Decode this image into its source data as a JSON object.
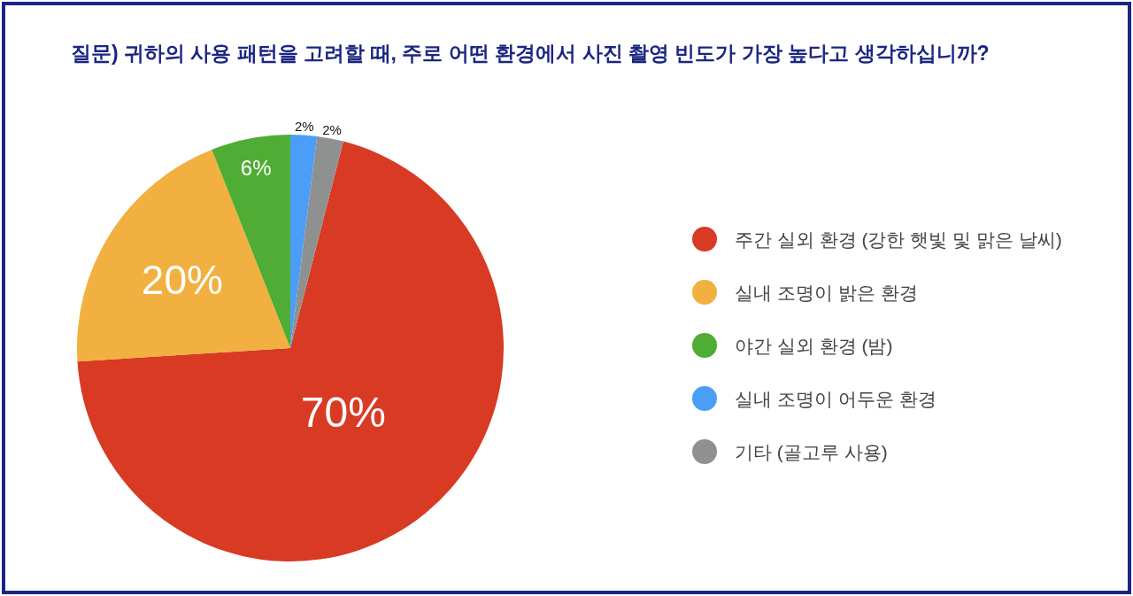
{
  "chart_data": {
    "type": "pie",
    "title": "질문) 귀하의 사용 패턴을 고려할 때, 주로 어떤 환경에서 사진 촬영 빈도가 가장 높다고 생각하십니까?",
    "categories": [
      "주간 실외 환경 (강한 햇빛 및 맑은 날씨)",
      "실내 조명이 밝은 환경",
      "야간 실외 환경 (밤)",
      "실내 조명이 어두운 환경",
      "기타 (골고루 사용)"
    ],
    "values": [
      70,
      20,
      6,
      2,
      2
    ],
    "colors": [
      "#d83a24",
      "#f1b040",
      "#4fac34",
      "#4a9ef7",
      "#8f9190"
    ],
    "value_labels": [
      "70%",
      "20%",
      "6%",
      "2%",
      "2%"
    ],
    "legend": "right"
  }
}
